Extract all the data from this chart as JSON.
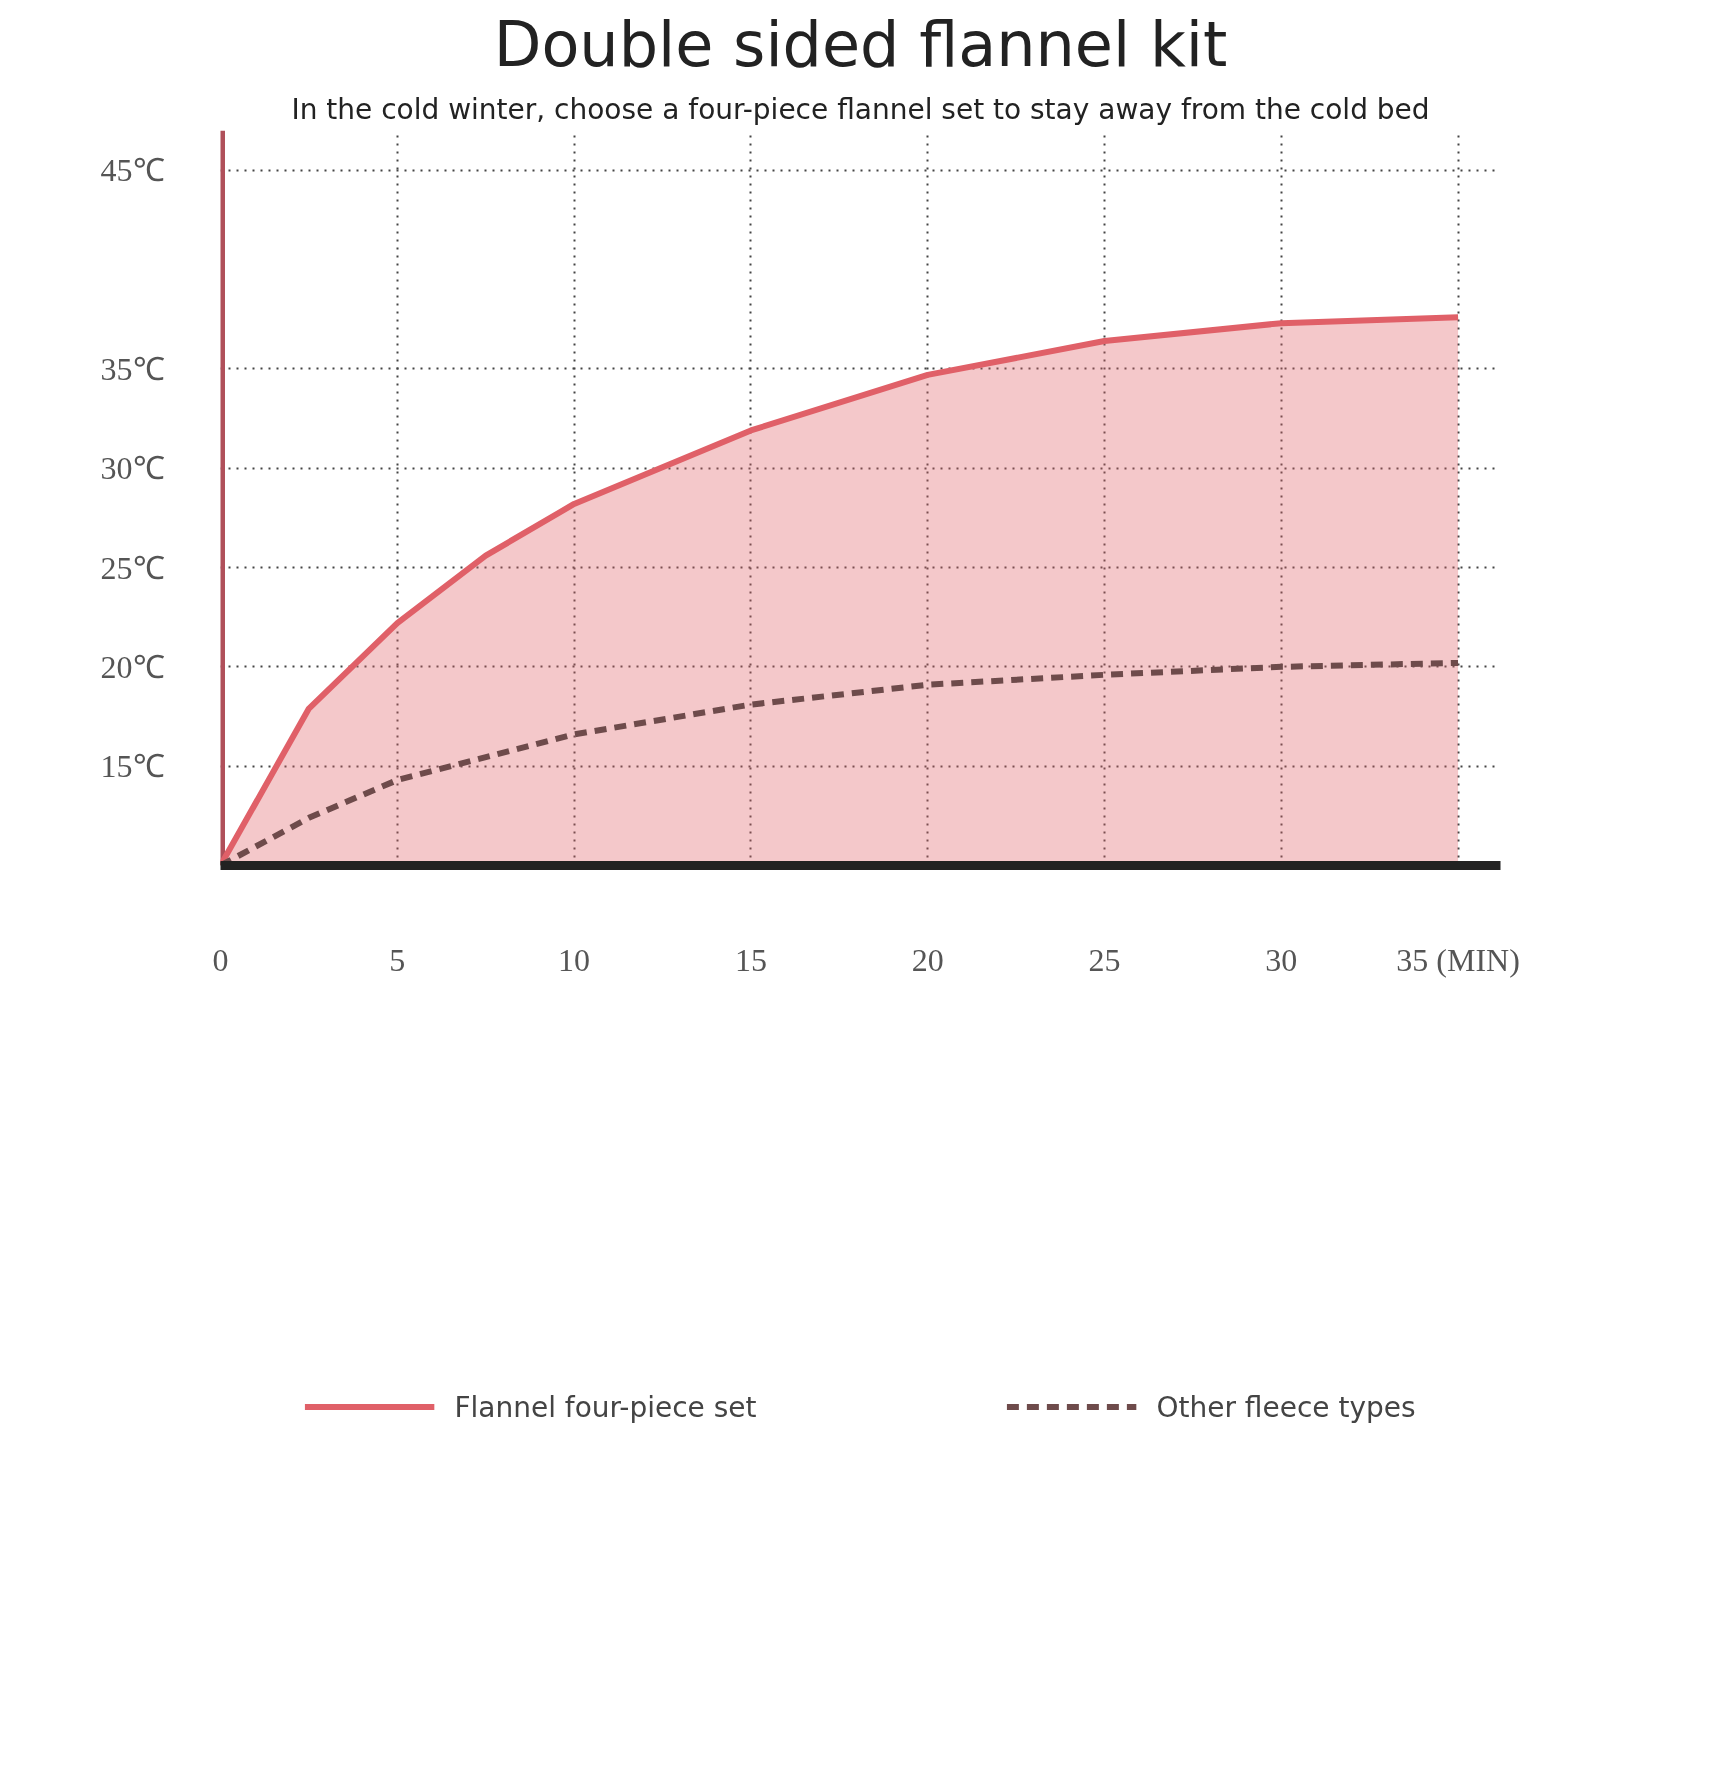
{
  "chart_data": {
    "type": "line",
    "title": "Double sided flannel kit",
    "subtitle": "In the cold winter, choose a four-piece flannel set to stay away from the cold bed",
    "xlim": [
      0,
      36.2
    ],
    "ylim": [
      10,
      47
    ],
    "xticks": [
      0,
      5,
      10,
      15,
      20,
      25,
      30,
      {
        "value": 35,
        "label": "35 (MIN)"
      }
    ],
    "yticks": [
      {
        "value": 15,
        "label": "15℃"
      },
      {
        "value": 20,
        "label": "20℃"
      },
      {
        "value": 25,
        "label": "25℃"
      },
      {
        "value": 30,
        "label": "30℃"
      },
      {
        "value": 35,
        "label": "35℃"
      },
      {
        "value": 45,
        "label": "45℃"
      }
    ],
    "grid": true,
    "legend": "bottom",
    "series": [
      {
        "name": "Flannel four-piece set",
        "type": "area",
        "color": "#e06068",
        "line_style": "solid",
        "x": [
          0,
          2.5,
          5,
          7.5,
          10,
          15,
          20,
          25,
          30,
          35
        ],
        "values": [
          10,
          17.9,
          22.2,
          25.6,
          28.2,
          31.9,
          34.7,
          36.4,
          37.3,
          37.6
        ]
      },
      {
        "name": "Other fleece types",
        "color": "#6e4b4b",
        "line_style": "dashed",
        "x": [
          0,
          2.5,
          5,
          10,
          15,
          20,
          25,
          30,
          35
        ],
        "values": [
          10,
          12.4,
          14.3,
          16.6,
          18.1,
          19.1,
          19.6,
          20.0,
          20.2
        ]
      }
    ]
  }
}
